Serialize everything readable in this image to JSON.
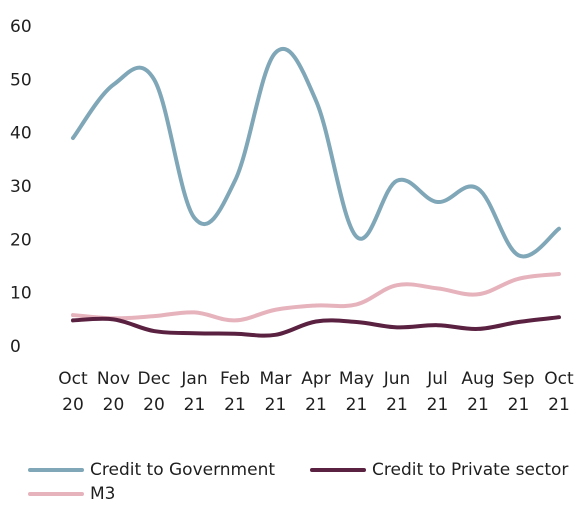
{
  "chart_data": {
    "type": "line",
    "categories": [
      [
        "Oct",
        "20"
      ],
      [
        "Nov",
        "20"
      ],
      [
        "Dec",
        "20"
      ],
      [
        "Jan",
        "21"
      ],
      [
        "Feb",
        "21"
      ],
      [
        "Mar",
        "21"
      ],
      [
        "Apr",
        "21"
      ],
      [
        "May",
        "21"
      ],
      [
        "Jun",
        "21"
      ],
      [
        "Jul",
        "21"
      ],
      [
        "Aug",
        "21"
      ],
      [
        "Sep",
        "21"
      ],
      [
        "Oct",
        "21"
      ]
    ],
    "ylim": [
      0,
      60
    ],
    "yticks": [
      "0",
      "10",
      "20",
      "30",
      "40",
      "50",
      "60"
    ],
    "grid": false,
    "legend_position": "bottom",
    "series": [
      {
        "name": "Credit to Government",
        "color": "#7fa7b8",
        "values": [
          39,
          49,
          50,
          24,
          31,
          55,
          46,
          20.5,
          31,
          27,
          29.5,
          17,
          22
        ]
      },
      {
        "name": "Credit to Private sector",
        "color": "#5a2140",
        "values": [
          4.8,
          5,
          2.8,
          2.4,
          2.3,
          2.1,
          4.6,
          4.5,
          3.5,
          3.9,
          3.2,
          4.5,
          5.4
        ]
      },
      {
        "name": "M3",
        "color": "#e6b3bd",
        "values": [
          5.8,
          5.2,
          5.6,
          6.3,
          4.8,
          6.8,
          7.6,
          7.8,
          11.4,
          10.8,
          9.7,
          12.6,
          13.5
        ]
      }
    ]
  }
}
